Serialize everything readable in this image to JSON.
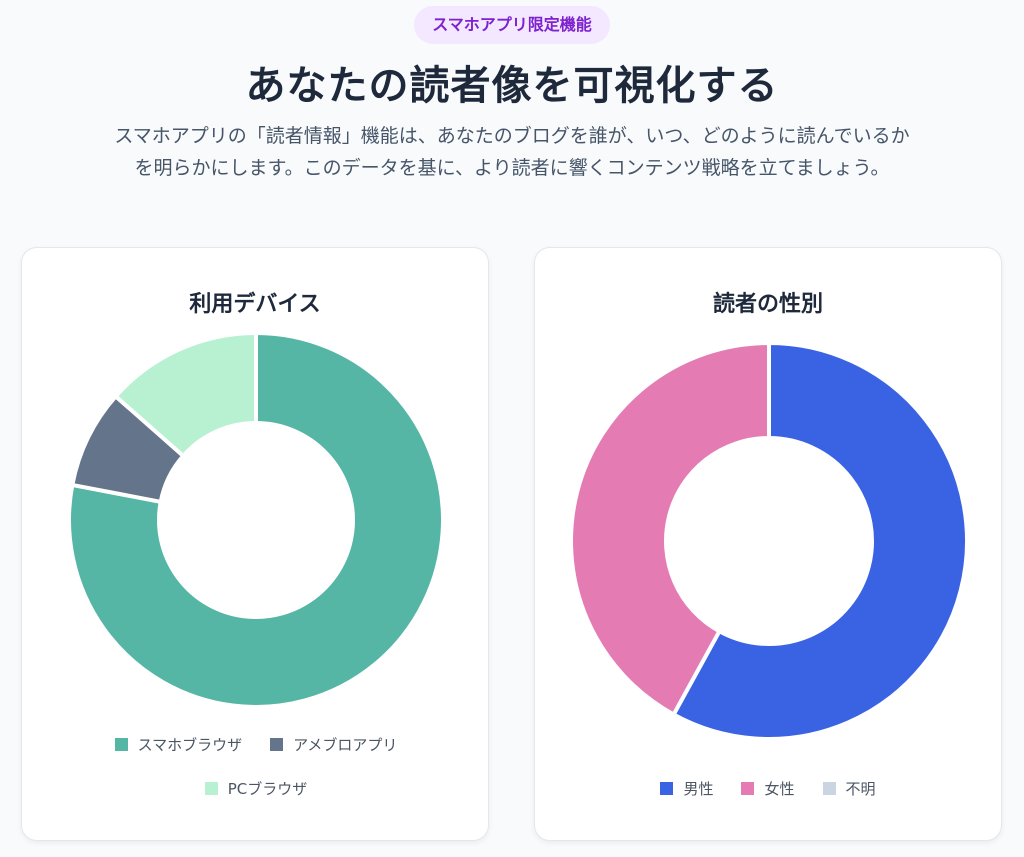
{
  "badge": "スマホアプリ限定機能",
  "title": "あなたの読者像を可視化する",
  "description": {
    "line1": "スマホアプリの「読者情報」機能は、あなたのブログを誰が、いつ、どのように読んでいるか",
    "line2": "を明らかにします。このデータを基に、より読者に響くコンテンツ戦略を立てましょう。"
  },
  "chart_data": [
    {
      "type": "pie",
      "variant": "doughnut",
      "title": "利用デバイス",
      "categories": [
        "スマホブラウザ",
        "アメブロアプリ",
        "PCブラウザ"
      ],
      "values": [
        78,
        8.5,
        13.5
      ],
      "colors": [
        "#56b6a5",
        "#64748b",
        "#b8f0d2"
      ],
      "legend_position": "bottom"
    },
    {
      "type": "pie",
      "variant": "doughnut",
      "title": "読者の性別",
      "categories": [
        "男性",
        "女性",
        "不明"
      ],
      "values": [
        58,
        42,
        0
      ],
      "colors": [
        "#3a63e4",
        "#e47bb3",
        "#cbd5e1"
      ],
      "legend_position": "bottom"
    }
  ]
}
